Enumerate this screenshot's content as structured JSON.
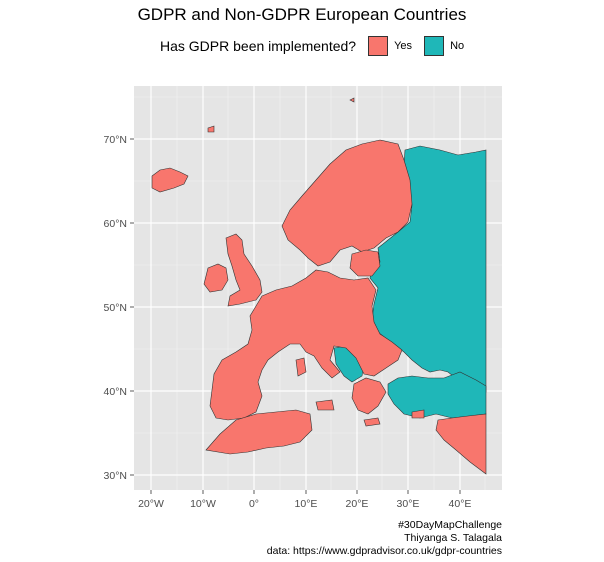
{
  "title": "GDPR and Non-GDPR European Countries",
  "legend": {
    "title": "Has GDPR been implemented?",
    "items": [
      {
        "label": "Yes",
        "color": "#F8766D"
      },
      {
        "label": "No",
        "color": "#1FB7B8"
      }
    ]
  },
  "axes": {
    "x_ticks": [
      "20°W",
      "10°W",
      "0°",
      "10°E",
      "20°E",
      "30°E",
      "40°E"
    ],
    "y_ticks": [
      "30°N",
      "40°N",
      "50°N",
      "60°N",
      "70°N"
    ]
  },
  "caption": [
    "#30DayMapChallenge",
    "Thiyanga S. Talagala",
    "data: https://www.gdpradvisor.co.uk/gdpr-countries"
  ],
  "colors": {
    "panel_bg": "#E5E5E5",
    "grid": "#FFFFFF",
    "yes": "#F8766D",
    "no": "#1FB7B8",
    "border": "#333333"
  }
}
